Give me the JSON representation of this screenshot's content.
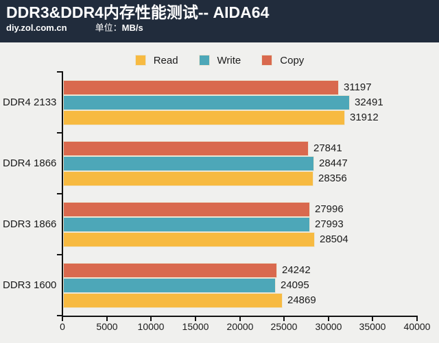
{
  "header": {
    "title": "DDR3&DDR4内存性能测试-- AIDA64",
    "source": "diy.zol.com.cn",
    "unit_label": "单位：",
    "unit_value": "MB/s"
  },
  "colors": {
    "header_bg": "#212c3c",
    "page_bg": "#f0f0ee",
    "axis": "#111111",
    "bar_border": "#ece6d4"
  },
  "chart_data": {
    "type": "bar",
    "orientation": "horizontal",
    "title": "DDR3&DDR4内存性能测试-- AIDA64",
    "subtitle_source": "diy.zol.com.cn",
    "unit": "MB/s",
    "categories": [
      "DDR4 2133",
      "DDR4 1866",
      "DDR3 1866",
      "DDR3 1600"
    ],
    "series": [
      {
        "name": "Read",
        "color": "#f7ba41",
        "values": [
          31912,
          28356,
          28504,
          24869
        ]
      },
      {
        "name": "Write",
        "color": "#4da7b8",
        "values": [
          32491,
          28447,
          27993,
          24095
        ]
      },
      {
        "name": "Copy",
        "color": "#d9694e",
        "values": [
          31197,
          27841,
          27996,
          24242
        ]
      }
    ],
    "bar_visual_order_top_to_bottom": [
      "Copy",
      "Write",
      "Read"
    ],
    "xlim": [
      0,
      40000
    ],
    "xticks": [
      0,
      5000,
      10000,
      15000,
      20000,
      25000,
      30000,
      35000,
      40000
    ],
    "legend_position": "top",
    "legend_order": [
      "Read",
      "Write",
      "Copy"
    ],
    "value_labels": true,
    "grid": false
  }
}
